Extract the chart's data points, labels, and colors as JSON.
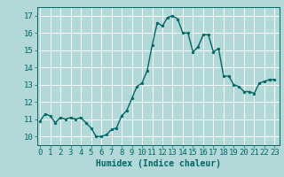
{
  "x": [
    0,
    0.5,
    1,
    1.5,
    2,
    2.5,
    3,
    3.5,
    4,
    4.5,
    5,
    5.5,
    6,
    6.5,
    7,
    7.5,
    8,
    8.5,
    9,
    9.5,
    10,
    10.5,
    11,
    11.5,
    12,
    12.5,
    13,
    13.5,
    14,
    14.5,
    15,
    15.5,
    16,
    16.5,
    17,
    17.5,
    18,
    18.5,
    19,
    19.5,
    20,
    20.5,
    21,
    21.5,
    22,
    22.5,
    23
  ],
  "y": [
    10.9,
    11.3,
    11.2,
    10.8,
    11.1,
    11.0,
    11.1,
    11.0,
    11.1,
    10.8,
    10.5,
    10.0,
    10.0,
    10.1,
    10.4,
    10.5,
    11.2,
    11.5,
    12.2,
    12.9,
    13.1,
    13.8,
    15.3,
    16.6,
    16.4,
    16.9,
    17.0,
    16.8,
    16.0,
    16.0,
    14.9,
    15.2,
    15.9,
    15.9,
    14.9,
    15.1,
    13.5,
    13.5,
    13.0,
    12.9,
    12.6,
    12.6,
    12.5,
    13.1,
    13.2,
    13.3,
    13.3
  ],
  "line_color": "#006666",
  "marker_color": "#006666",
  "bg_color": "#b2d8d8",
  "grid_color": "#ffffff",
  "xlabel": "Humidex (Indice chaleur)",
  "ylabel_ticks": [
    10,
    11,
    12,
    13,
    14,
    15,
    16,
    17
  ],
  "xticks": [
    0,
    1,
    2,
    3,
    4,
    5,
    6,
    7,
    8,
    9,
    10,
    11,
    12,
    13,
    14,
    15,
    16,
    17,
    18,
    19,
    20,
    21,
    22,
    23
  ],
  "ylim": [
    9.5,
    17.5
  ],
  "xlim": [
    -0.3,
    23.5
  ],
  "xlabel_fontsize": 7,
  "tick_fontsize": 6.5,
  "linewidth": 1.0,
  "markersize": 2.0
}
